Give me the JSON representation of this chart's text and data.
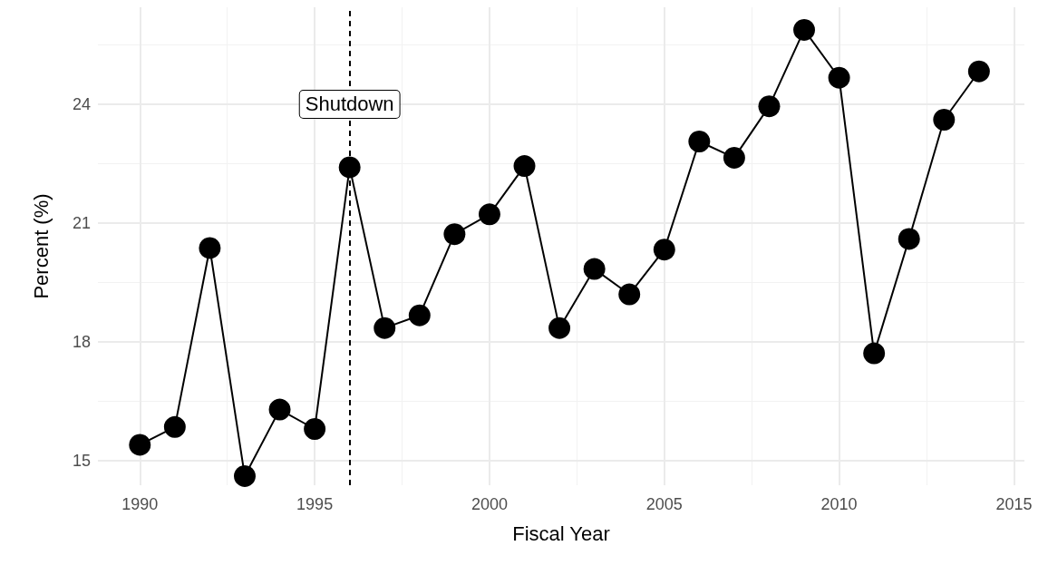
{
  "chart_data": {
    "type": "line",
    "xlabel": "Fiscal Year",
    "ylabel": "Percent (%)",
    "x": [
      1990,
      1991,
      1992,
      1993,
      1994,
      1995,
      1996,
      1997,
      1998,
      1999,
      2000,
      2001,
      2002,
      2003,
      2004,
      2005,
      2006,
      2007,
      2008,
      2009,
      2010,
      2011,
      2012,
      2013,
      2014
    ],
    "series": [
      {
        "color": "#000000",
        "values": [
          15.4,
          15.85,
          20.37,
          14.61,
          16.29,
          15.8,
          22.41,
          18.35,
          18.67,
          20.72,
          21.22,
          22.44,
          18.35,
          19.84,
          19.2,
          20.33,
          23.06,
          22.65,
          23.95,
          25.88,
          24.67,
          17.71,
          20.6,
          23.61,
          24.83
        ]
      }
    ],
    "xlim": [
      1988.8,
      2015.3
    ],
    "xticks": [
      1990,
      1995,
      2000,
      2005,
      2010,
      2015
    ],
    "ylim": [
      14.38,
      26.45
    ],
    "yticks": [
      15,
      18,
      21,
      24
    ],
    "grid": true,
    "marker": "circle",
    "line_style": "solid",
    "ref_lines": [
      {
        "axis": "x",
        "value": 1996,
        "color": "#000000",
        "line_style": "dashed"
      }
    ],
    "annotations": [
      {
        "text": "Shutdown",
        "x": 1996,
        "y": 24
      }
    ]
  }
}
